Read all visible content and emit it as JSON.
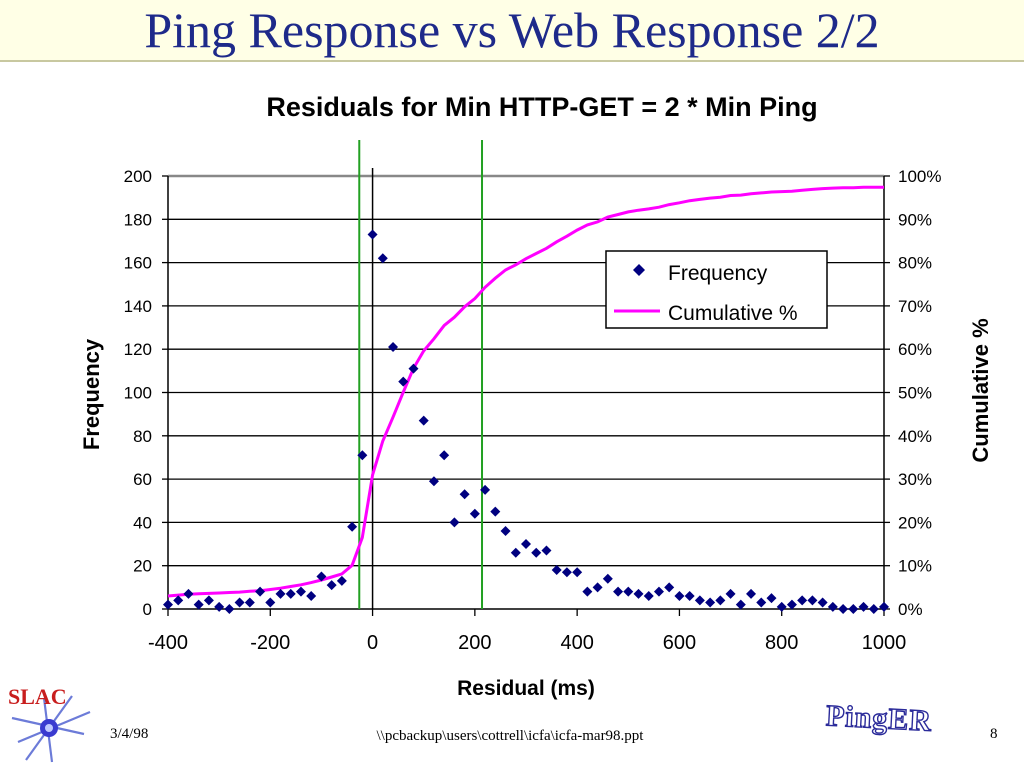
{
  "slide": {
    "title": "Ping Response vs Web Response 2/2",
    "footer_date": "3/4/98",
    "footer_path": "\\\\pcbackup\\users\\cottrell\\icfa\\icfa-mar98.ppt",
    "page_number": "8",
    "logo_left_text": "SLAC",
    "logo_right_text": "PingER"
  },
  "colors": {
    "title": "#1e2a8a",
    "frequency_marker": "#000080",
    "cumulative_line": "#ff00ff",
    "threshold_lines": "#22a022"
  },
  "chart_data": {
    "type": "scatter",
    "title": "Residuals for Min HTTP-GET = 2 * Min Ping",
    "xlabel": "Residual (ms)",
    "ylabel": "Frequency",
    "y2label": "Cumulative  %",
    "xlim": [
      -400,
      1000
    ],
    "ylim": [
      0,
      200
    ],
    "y2lim": [
      0,
      100
    ],
    "x_ticks": [
      "-400",
      "-200",
      "0",
      "200",
      "400",
      "600",
      "800",
      "1000"
    ],
    "y_ticks": [
      "0",
      "20",
      "40",
      "60",
      "80",
      "100",
      "120",
      "140",
      "160",
      "180",
      "200"
    ],
    "y2_ticks": [
      "0%",
      "10%",
      "20%",
      "30%",
      "40%",
      "50%",
      "60%",
      "70%",
      "80%",
      "90%",
      "100%"
    ],
    "grid": "horizontal",
    "legend_position": "right",
    "vertical_lines": [
      -26,
      214
    ],
    "series": [
      {
        "name": "Frequency",
        "kind": "points",
        "x": [
          -400,
          -380,
          -360,
          -340,
          -320,
          -300,
          -280,
          -260,
          -240,
          -220,
          -200,
          -180,
          -160,
          -140,
          -120,
          -100,
          -80,
          -60,
          -40,
          -20,
          0,
          20,
          40,
          60,
          80,
          100,
          120,
          140,
          160,
          180,
          200,
          220,
          240,
          260,
          280,
          300,
          320,
          340,
          360,
          380,
          400,
          420,
          440,
          460,
          480,
          500,
          520,
          540,
          560,
          580,
          600,
          620,
          640,
          660,
          680,
          700,
          720,
          740,
          760,
          780,
          800,
          820,
          840,
          860,
          880,
          900,
          920,
          940,
          960,
          980,
          1000
        ],
        "y": [
          2,
          4,
          7,
          2,
          4,
          1,
          0,
          3,
          3,
          8,
          3,
          7,
          7,
          8,
          6,
          15,
          11,
          13,
          38,
          71,
          173,
          162,
          121,
          105,
          111,
          87,
          59,
          71,
          40,
          53,
          44,
          55,
          45,
          36,
          26,
          30,
          26,
          27,
          18,
          17,
          17,
          8,
          10,
          14,
          8,
          8,
          7,
          6,
          8,
          10,
          6,
          6,
          4,
          3,
          4,
          7,
          2,
          7,
          3,
          5,
          1,
          2,
          4,
          4,
          3,
          1,
          0,
          0,
          1,
          0,
          1
        ]
      },
      {
        "name": "Cumulative %",
        "kind": "line",
        "x": [
          -400,
          -380,
          -360,
          -340,
          -320,
          -300,
          -280,
          -260,
          -240,
          -220,
          -200,
          -180,
          -160,
          -140,
          -120,
          -100,
          -80,
          -60,
          -40,
          -20,
          0,
          20,
          40,
          60,
          80,
          100,
          120,
          140,
          160,
          180,
          200,
          220,
          240,
          260,
          280,
          300,
          320,
          340,
          360,
          380,
          400,
          420,
          440,
          460,
          480,
          500,
          520,
          540,
          560,
          580,
          600,
          620,
          640,
          660,
          680,
          700,
          720,
          740,
          760,
          780,
          800,
          820,
          840,
          860,
          880,
          900,
          920,
          940,
          960,
          980,
          1000
        ],
        "y": [
          3,
          3.2,
          3.4,
          3.5,
          3.6,
          3.7,
          3.8,
          3.9,
          4.1,
          4.2,
          4.5,
          4.8,
          5.2,
          5.6,
          6.1,
          6.7,
          7.4,
          8.1,
          10.1,
          16.5,
          31,
          38.8,
          44.3,
          50.1,
          55.6,
          59.6,
          62.4,
          65.5,
          67.4,
          69.8,
          71.7,
          74.3,
          76.4,
          78.3,
          79.5,
          80.9,
          82.1,
          83.3,
          84.8,
          86.1,
          87.5,
          88.7,
          89.4,
          90.5,
          91.1,
          91.7,
          92.1,
          92.4,
          92.8,
          93.4,
          93.8,
          94.3,
          94.6,
          94.9,
          95.1,
          95.5,
          95.6,
          95.9,
          96.1,
          96.3,
          96.4,
          96.5,
          96.7,
          96.9,
          97.1,
          97.2,
          97.3,
          97.3,
          97.4,
          97.4,
          97.4
        ]
      }
    ]
  }
}
